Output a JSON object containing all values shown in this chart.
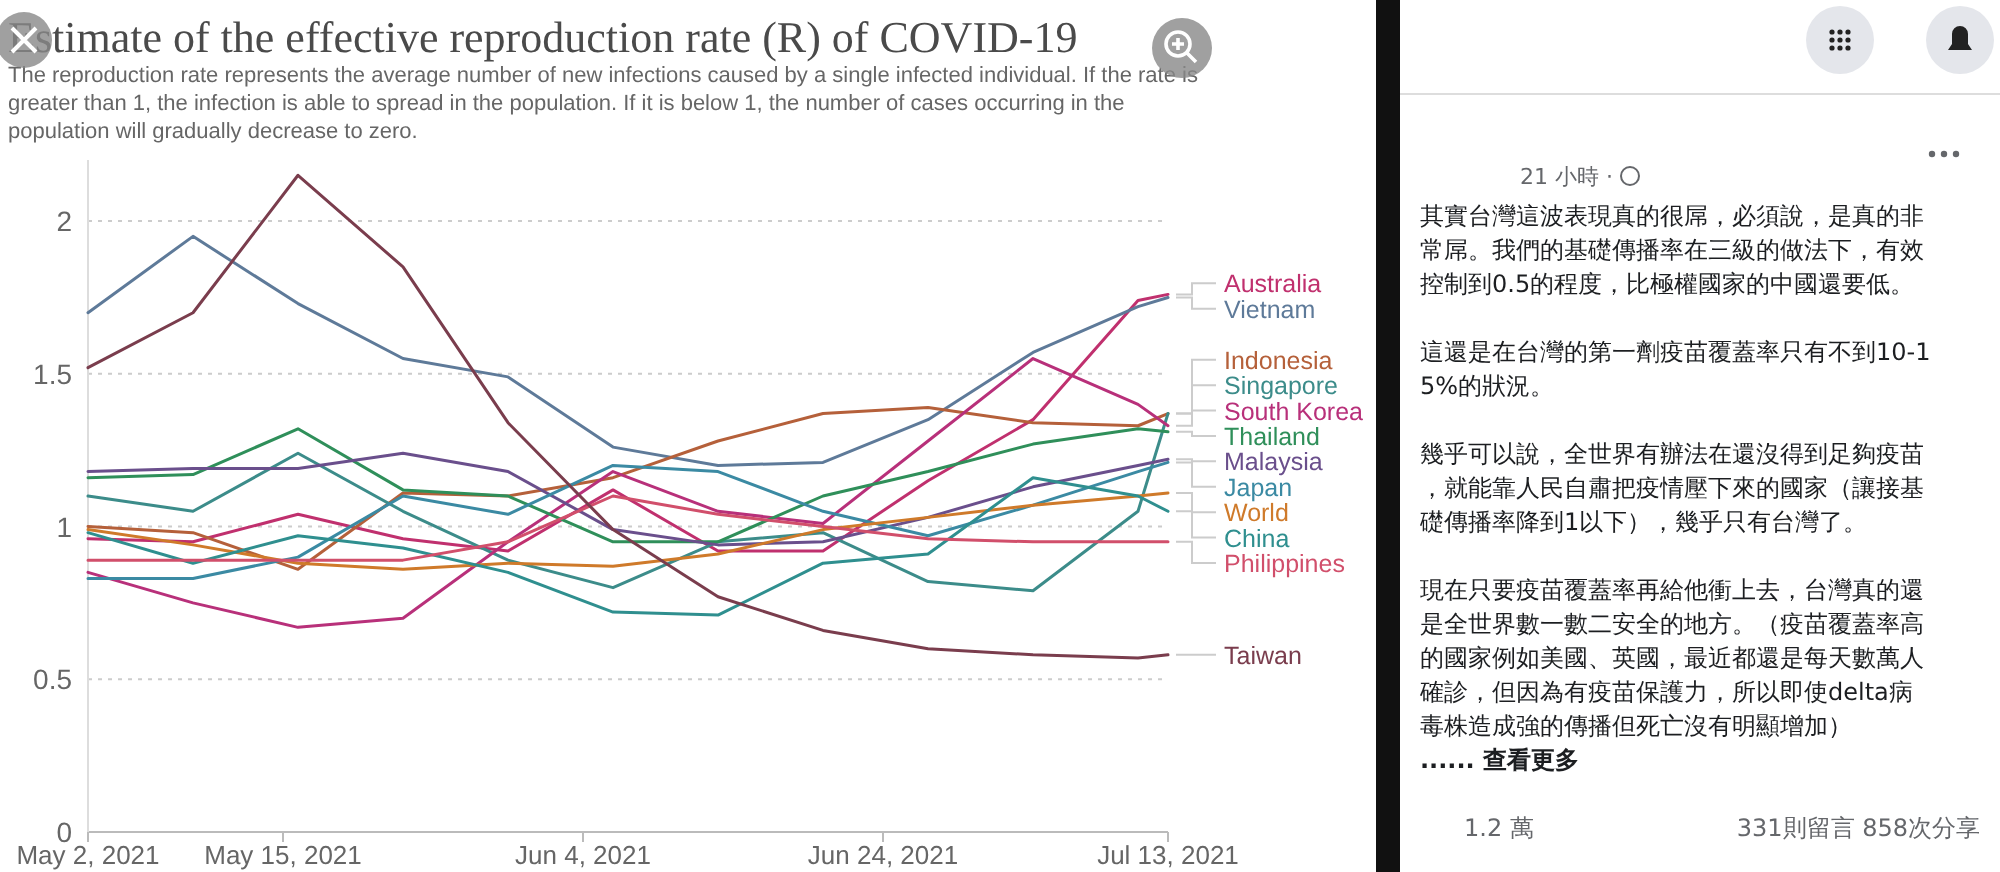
{
  "chart_data": {
    "type": "line",
    "title": "Estimate of the effective reproduction rate (R) of COVID-19",
    "subtitle": "The reproduction rate represents the average number of new infections caused by a single infected individual. If the rate is greater than 1, the infection is able to spread in the population. If it is below 1, the number of cases occurring in the population will gradually decrease to zero.",
    "x": [
      "2021-05-02",
      "2021-05-09",
      "2021-05-16",
      "2021-05-23",
      "2021-05-30",
      "2021-06-06",
      "2021-06-13",
      "2021-06-20",
      "2021-06-27",
      "2021-07-04",
      "2021-07-11",
      "2021-07-13"
    ],
    "xlim": [
      "2021-05-02",
      "2021-07-13"
    ],
    "xticks": [
      {
        "value": "2021-05-02",
        "label": "May 2, 2021"
      },
      {
        "value": "2021-05-15",
        "label": "May 15, 2021"
      },
      {
        "value": "2021-06-04",
        "label": "Jun 4, 2021"
      },
      {
        "value": "2021-06-24",
        "label": "Jun 24, 2021"
      },
      {
        "value": "2021-07-13",
        "label": "Jul 13, 2021"
      }
    ],
    "ylim": [
      0,
      2.2
    ],
    "yticks": [
      0,
      0.5,
      1,
      1.5,
      2
    ],
    "grid": "y",
    "legend": "right",
    "marker": "none",
    "line_style": "solid",
    "series": [
      {
        "name": "Australia",
        "color": "#c0306e",
        "values": [
          0.96,
          0.95,
          1.04,
          0.96,
          0.92,
          1.12,
          0.92,
          0.92,
          1.15,
          1.35,
          1.74,
          1.76
        ]
      },
      {
        "name": "Vietnam",
        "color": "#5e7a99",
        "values": [
          1.7,
          1.95,
          1.73,
          1.55,
          1.49,
          1.26,
          1.2,
          1.21,
          1.35,
          1.57,
          1.72,
          1.75
        ]
      },
      {
        "name": "Indonesia",
        "color": "#b5603a",
        "values": [
          1.0,
          0.98,
          0.86,
          1.11,
          1.1,
          1.16,
          1.28,
          1.37,
          1.39,
          1.34,
          1.33,
          1.37
        ]
      },
      {
        "name": "Singapore",
        "color": "#3c8c8a",
        "values": [
          1.1,
          1.05,
          1.24,
          1.05,
          0.89,
          0.8,
          0.95,
          0.98,
          0.82,
          0.79,
          1.05,
          1.37
        ]
      },
      {
        "name": "South Korea",
        "color": "#b8307a",
        "values": [
          0.85,
          0.75,
          0.67,
          0.7,
          0.95,
          1.18,
          1.05,
          1.01,
          1.28,
          1.55,
          1.4,
          1.33
        ]
      },
      {
        "name": "Thailand",
        "color": "#2f8f5a",
        "values": [
          1.16,
          1.17,
          1.32,
          1.12,
          1.1,
          0.95,
          0.95,
          1.1,
          1.18,
          1.27,
          1.32,
          1.31
        ]
      },
      {
        "name": "Malaysia",
        "color": "#6a4f8c",
        "values": [
          1.18,
          1.19,
          1.19,
          1.24,
          1.18,
          0.99,
          0.94,
          0.95,
          1.03,
          1.13,
          1.2,
          1.22
        ]
      },
      {
        "name": "Japan",
        "color": "#3b8aa3",
        "values": [
          0.83,
          0.83,
          0.9,
          1.1,
          1.04,
          1.2,
          1.18,
          1.05,
          0.97,
          1.07,
          1.18,
          1.21
        ]
      },
      {
        "name": "World",
        "color": "#cf7a2a",
        "values": [
          0.99,
          0.94,
          0.88,
          0.86,
          0.88,
          0.87,
          0.91,
          0.99,
          1.03,
          1.07,
          1.1,
          1.11
        ]
      },
      {
        "name": "China",
        "color": "#2f8f8f",
        "values": [
          0.98,
          0.88,
          0.97,
          0.93,
          0.85,
          0.72,
          0.71,
          0.88,
          0.91,
          1.16,
          1.1,
          1.05
        ]
      },
      {
        "name": "Philippines",
        "color": "#d14f6b",
        "values": [
          0.89,
          0.89,
          0.89,
          0.89,
          0.95,
          1.1,
          1.04,
          1.0,
          0.96,
          0.95,
          0.95,
          0.95
        ]
      },
      {
        "name": "Taiwan",
        "color": "#7a3d4d",
        "values": [
          1.52,
          1.7,
          2.15,
          1.85,
          1.34,
          0.99,
          0.77,
          0.66,
          0.6,
          0.58,
          0.57,
          0.58
        ]
      }
    ],
    "annotations": [
      "21 小時 ·",
      "其實台灣這波表現真的很屌，必須說，是真的非常屌。我們的基礎傳播率在三級的做法下，有效控制到0.5的程度，比極權國家的中國還要低。",
      "這還是在台灣的第一劑疫苗覆蓋率只有不到10-15%的狀況。",
      "幾乎可以說，全世界有辦法在還沒得到足夠疫苗，就能靠人民自肅把疫情壓下來的國家（讓接基礎傳播率降到1以下），幾乎只有台灣了。",
      "現在只要疫苗覆蓋率再給他衝上去，台灣真的還是全世界數一數二安全的地方。（疫苗覆蓋率高的國家例如美國、英國，最近都還是每天數萬人確診，但因為有疫苗保護力，所以即使delta病毒株造成強的傳播但死亡沒有明顯增加）",
      "...... 查看更多",
      "1.2 萬",
      "331則留言 858次分享"
    ]
  }
}
